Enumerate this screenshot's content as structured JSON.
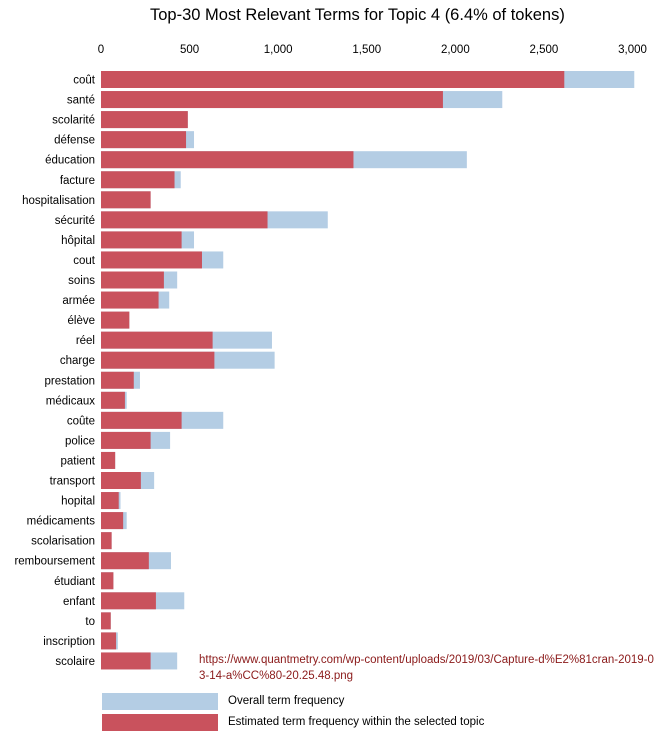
{
  "chart_data": {
    "type": "bar",
    "orientation": "horizontal",
    "title": "Top-30 Most Relevant Terms for Topic 4 (6.4% of tokens)",
    "xlim": [
      0,
      3000
    ],
    "xticks": [
      "0",
      "500",
      "1,000",
      "1,500",
      "2,000",
      "2,500",
      "3,000"
    ],
    "grid": false,
    "categories": [
      "coût",
      "santé",
      "scolarité",
      "défense",
      "éducation",
      "facture",
      "hospitalisation",
      "sécurité",
      "hôpital",
      "cout",
      "soins",
      "armée",
      "élève",
      "réel",
      "charge",
      "prestation",
      "médicaux",
      "coûte",
      "police",
      "patient",
      "transport",
      "hopital",
      "médicaments",
      "scolarisation",
      "remboursement",
      "étudiant",
      "enfant",
      "to",
      "inscription",
      "scolaire"
    ],
    "series": [
      {
        "name": "Overall term frequency",
        "color": "#b4cde4",
        "values": [
          3010,
          2265,
          490,
          525,
          2065,
          450,
          280,
          1280,
          525,
          690,
          430,
          385,
          160,
          965,
          980,
          220,
          145,
          690,
          390,
          80,
          300,
          110,
          145,
          60,
          395,
          70,
          470,
          55,
          95,
          430
        ]
      },
      {
        "name": "Estimated term frequency within the selected topic",
        "color": "#c9525d",
        "values": [
          2615,
          1930,
          490,
          480,
          1425,
          415,
          280,
          940,
          455,
          570,
          355,
          325,
          160,
          630,
          640,
          185,
          135,
          455,
          280,
          80,
          225,
          100,
          125,
          60,
          270,
          70,
          310,
          55,
          85,
          280
        ]
      }
    ]
  },
  "source_url": "https://www.quantmetry.com/wp-content/uploads/2019/03/Capture-d%E2%81cran-2019-03-14-a%CC%80-20.25.48.png"
}
